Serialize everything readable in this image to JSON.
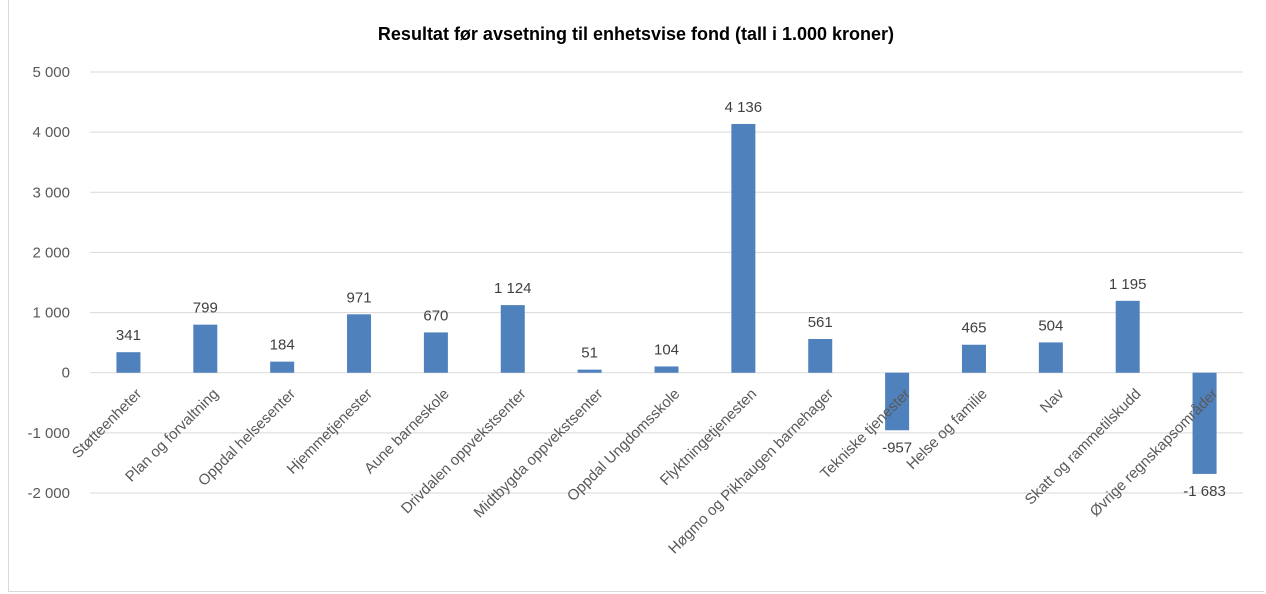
{
  "chart_data": {
    "type": "bar",
    "title": "Resultat før avsetning til enhetsvise fond (tall i 1.000 kroner)",
    "xlabel": "",
    "ylabel": "",
    "ylim": [
      -2000,
      5000
    ],
    "yticks": [
      5000,
      4000,
      3000,
      2000,
      1000,
      0,
      -1000,
      -2000
    ],
    "ytick_labels": [
      "5 000",
      "4 000",
      "3 000",
      "2 000",
      "1 000",
      "0",
      "-1 000",
      "-2 000"
    ],
    "grid": true,
    "legend": "none",
    "bar_color": "#4f81bd",
    "categories": [
      "Støtteenheter",
      "Plan og forvaltning",
      "Oppdal helsesenter",
      "Hjemmetjenester",
      "Aune barneskole",
      "Drivdalen oppvekstsenter",
      "Midtbygda oppvekstsenter",
      "Oppdal Ungdomsskole",
      "Flyktningetjenesten",
      "Høgmo og Pikhaugen barnehager",
      "Tekniske tjenester",
      "Helse og familie",
      "Nav",
      "Skatt og rammetilskudd",
      "Øvrige regnskapsområder"
    ],
    "values": [
      341,
      799,
      184,
      971,
      670,
      1124,
      51,
      104,
      4136,
      561,
      -957,
      465,
      504,
      1195,
      -1683
    ],
    "value_labels": [
      "341",
      "799",
      "184",
      "971",
      "670",
      "1 124",
      "51",
      "104",
      "4 136",
      "561",
      "-957",
      "465",
      "504",
      "1 195",
      "-1 683"
    ]
  }
}
